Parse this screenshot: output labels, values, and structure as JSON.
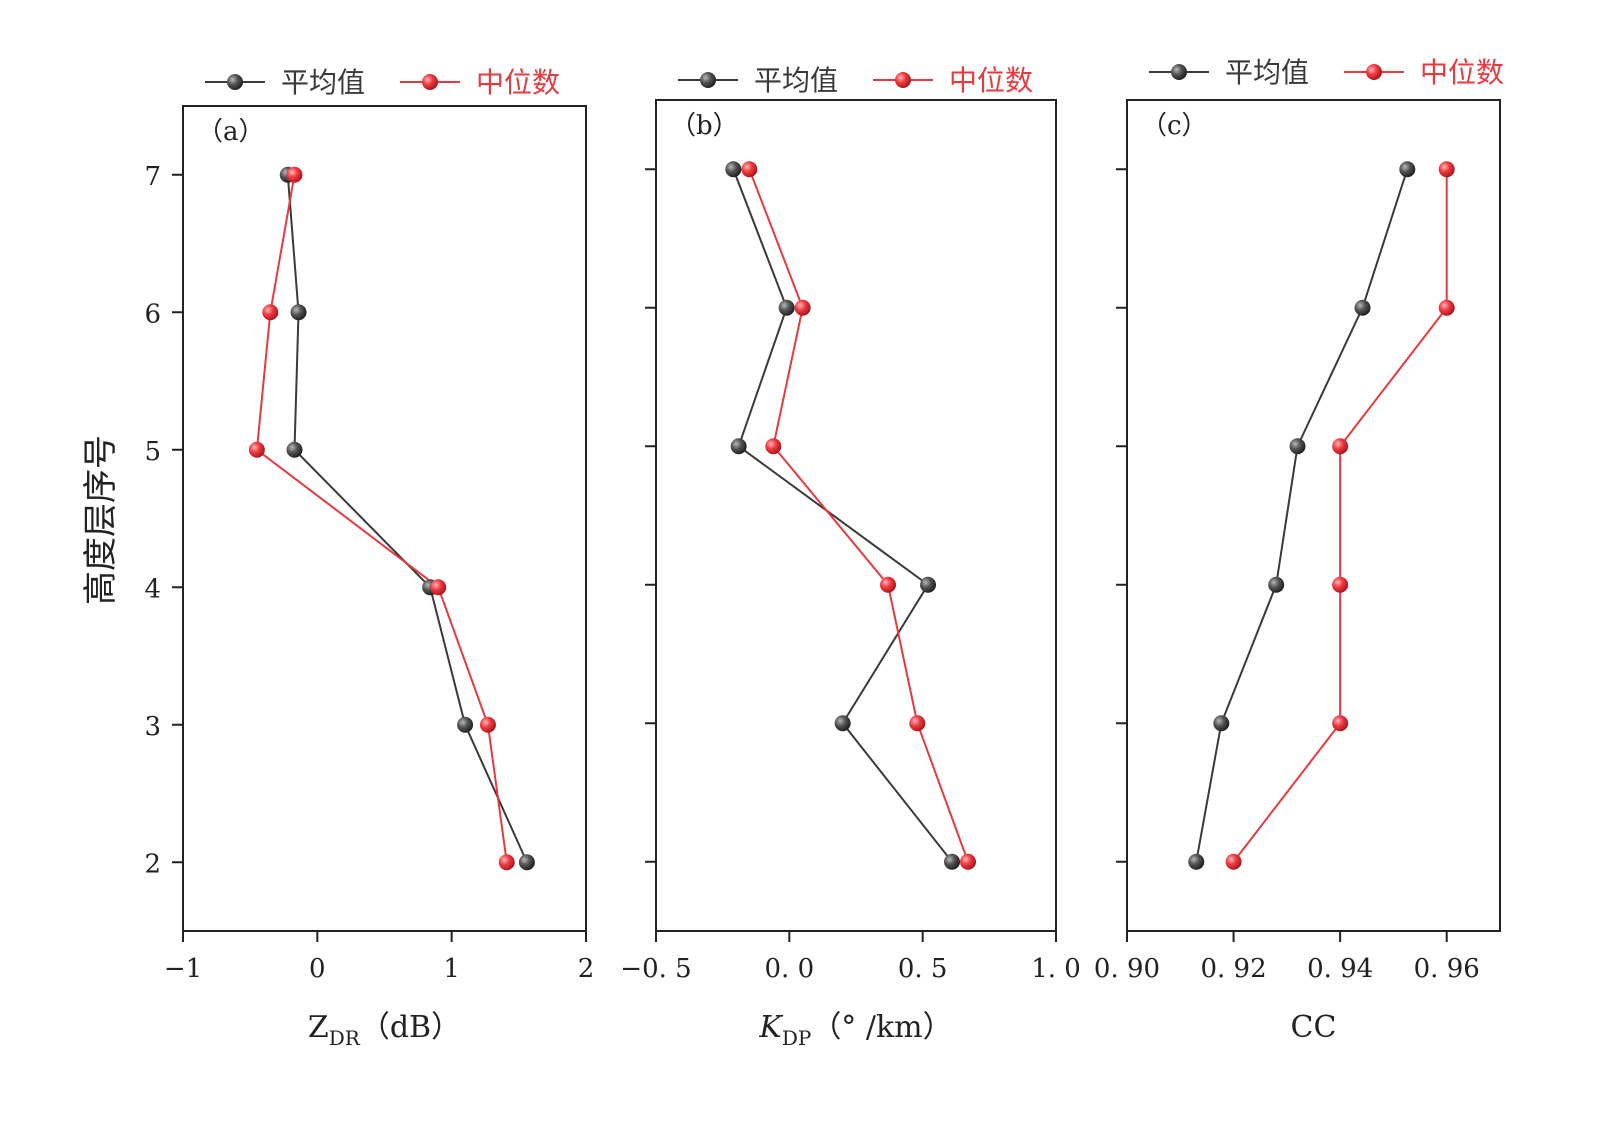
{
  "y_axis_title": "高度层序号",
  "colors": {
    "mean": "#3a3a3a",
    "median": "#e8393f",
    "frame": "#222222"
  },
  "legend": {
    "mean": "平均值",
    "median": "中位数"
  },
  "chart_data": [
    {
      "type": "line",
      "panel_label": "（a）",
      "xlabel_main": "Z",
      "xlabel_sub": "DR",
      "xlabel_unit": "（dB）",
      "xlim": [
        -1,
        2
      ],
      "ylim": [
        1.5,
        7.5
      ],
      "xticks": [
        -1,
        0,
        1,
        2
      ],
      "xtick_labels": [
        "−1",
        "0",
        "1",
        "2"
      ],
      "yticks": [
        2,
        3,
        4,
        5,
        6,
        7
      ],
      "ytick_labels": [
        "2",
        "3",
        "4",
        "5",
        "6",
        "7"
      ],
      "y": [
        7,
        6,
        5,
        4,
        3,
        2
      ],
      "series": [
        {
          "name": "平均值",
          "x": [
            -0.22,
            -0.14,
            -0.17,
            0.84,
            1.1,
            1.56
          ]
        },
        {
          "name": "中位数",
          "x": [
            -0.17,
            -0.35,
            -0.45,
            0.9,
            1.27,
            1.41
          ]
        }
      ]
    },
    {
      "type": "line",
      "panel_label": "（b）",
      "xlabel_main": "K",
      "xlabel_sub": "DP",
      "xlabel_unit": "（° /km）",
      "xlim": [
        -0.5,
        1.0
      ],
      "ylim": [
        1.5,
        7.5
      ],
      "xticks": [
        -0.5,
        0.0,
        0.5,
        1.0
      ],
      "xtick_labels": [
        "−0. 5",
        "0. 0",
        "0. 5",
        "1. 0"
      ],
      "yticks": [
        2,
        3,
        4,
        5,
        6,
        7
      ],
      "ytick_labels": [
        "",
        "",
        "",
        "",
        "",
        ""
      ],
      "y": [
        7,
        6,
        5,
        4,
        3,
        2
      ],
      "series": [
        {
          "name": "平均值",
          "x": [
            -0.21,
            -0.01,
            -0.19,
            0.52,
            0.2,
            0.61
          ]
        },
        {
          "name": "中位数",
          "x": [
            -0.15,
            0.05,
            -0.06,
            0.37,
            0.48,
            0.67
          ]
        }
      ]
    },
    {
      "type": "line",
      "panel_label": "（c）",
      "xlabel_main": "CC",
      "xlabel_sub": "",
      "xlabel_unit": "",
      "xlim": [
        0.9,
        0.97
      ],
      "ylim": [
        1.5,
        7.5
      ],
      "xticks": [
        0.9,
        0.92,
        0.94,
        0.96
      ],
      "xtick_labels": [
        "0. 90",
        "0. 92",
        "0. 94",
        "0. 96"
      ],
      "yticks": [
        2,
        3,
        4,
        5,
        6,
        7
      ],
      "ytick_labels": [
        "",
        "",
        "",
        "",
        "",
        ""
      ],
      "y": [
        7,
        6,
        5,
        4,
        3,
        2
      ],
      "series": [
        {
          "name": "平均值",
          "x": [
            0.9526,
            0.9442,
            0.932,
            0.928,
            0.9177,
            0.913
          ]
        },
        {
          "name": "中位数",
          "x": [
            0.96,
            0.96,
            0.94,
            0.94,
            0.94,
            0.92
          ]
        }
      ]
    }
  ]
}
